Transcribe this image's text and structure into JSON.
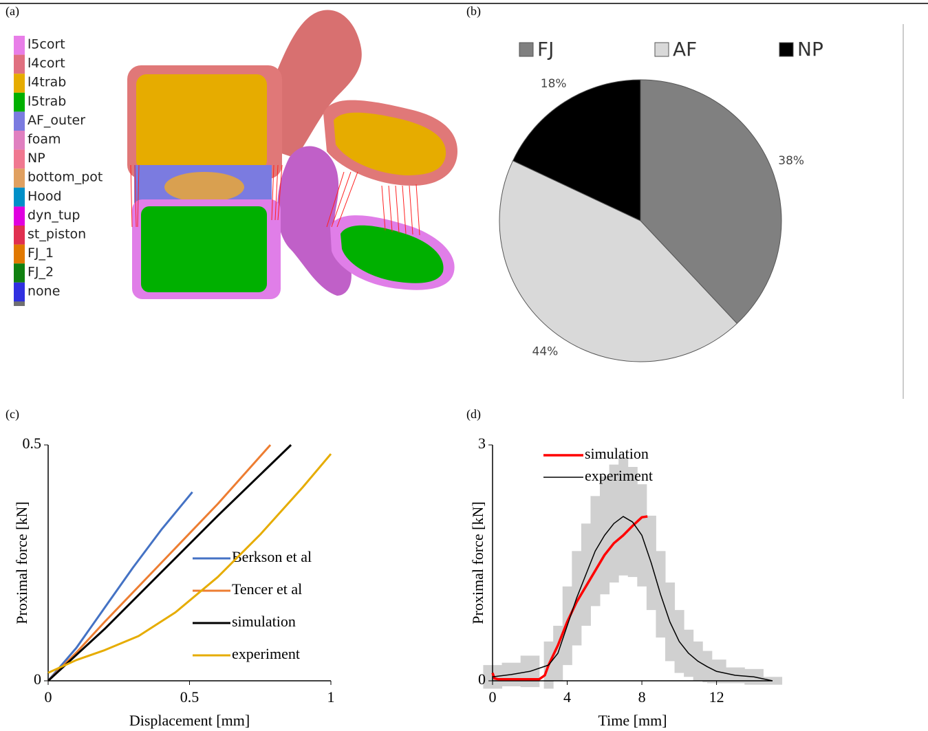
{
  "panel_a": {
    "label": "(a)",
    "legend": [
      {
        "name": "l5cort",
        "color": "#e87ee8"
      },
      {
        "name": "l4cort",
        "color": "#e07080"
      },
      {
        "name": "l4trab",
        "color": "#e6ac00"
      },
      {
        "name": "l5trab",
        "color": "#00b000"
      },
      {
        "name": "AF_outer",
        "color": "#7b7be0"
      },
      {
        "name": "foam",
        "color": "#e080c0"
      },
      {
        "name": "NP",
        "color": "#f07890"
      },
      {
        "name": "bottom_pot",
        "color": "#e0a060"
      },
      {
        "name": "Hood",
        "color": "#0090c8"
      },
      {
        "name": "dyn_tup",
        "color": "#e000e0"
      },
      {
        "name": "st_piston",
        "color": "#e03050"
      },
      {
        "name": "FJ_1",
        "color": "#e07800"
      },
      {
        "name": "FJ_2",
        "color": "#108010"
      },
      {
        "name": "none",
        "color": "#3030e0"
      }
    ]
  },
  "chart_data": [
    {
      "type": "pie",
      "label": "(b)",
      "categories": [
        "FJ",
        "AF",
        "NP"
      ],
      "values": [
        38,
        44,
        18
      ],
      "value_labels": [
        "38%",
        "44%",
        "18%"
      ],
      "colors": [
        "#808080",
        "#d9d9d9",
        "#000000"
      ],
      "legend": "top"
    },
    {
      "type": "line",
      "label": "(c)",
      "xlabel": "Displacement  [mm]",
      "ylabel": "Proximal force [kN]",
      "xlim": [
        0,
        1
      ],
      "ylim": [
        0,
        0.5
      ],
      "xticks": [
        0,
        0.5,
        1
      ],
      "yticks": [
        0,
        0.5
      ],
      "grid": false,
      "legend": "right",
      "series": [
        {
          "name": "Berkson et al",
          "color": "#4472c4",
          "width": 3,
          "x": [
            0,
            0.1,
            0.2,
            0.3,
            0.4,
            0.51
          ],
          "values": [
            0,
            0.07,
            0.155,
            0.24,
            0.32,
            0.4
          ]
        },
        {
          "name": "Tencer et al",
          "color": "#ed7d31",
          "width": 3,
          "x": [
            0,
            0.1,
            0.2,
            0.4,
            0.6,
            0.786
          ],
          "values": [
            0,
            0.06,
            0.125,
            0.25,
            0.375,
            0.5
          ]
        },
        {
          "name": "simulation",
          "color": "#000000",
          "width": 3,
          "x": [
            0,
            0.2,
            0.4,
            0.6,
            0.859
          ],
          "values": [
            0,
            0.11,
            0.23,
            0.35,
            0.5
          ]
        },
        {
          "name": "experiment",
          "color": "#e6ac00",
          "width": 3,
          "x": [
            0,
            0.1,
            0.2,
            0.32,
            0.45,
            0.6,
            0.75,
            0.9,
            1
          ],
          "values": [
            0.017,
            0.044,
            0.065,
            0.095,
            0.145,
            0.22,
            0.31,
            0.41,
            0.481
          ]
        }
      ]
    },
    {
      "type": "line",
      "label": "(d)",
      "xlabel": "Time [mm]",
      "ylabel": "Proximal force [kN]",
      "xlim": [
        0,
        15
      ],
      "ylim": [
        0,
        3
      ],
      "xticks": [
        0,
        4,
        8,
        12
      ],
      "yticks": [
        0,
        3
      ],
      "grid": false,
      "legend": "top",
      "series": [
        {
          "name": "simulation",
          "color": "#ff0000",
          "width": 3.5,
          "x": [
            0,
            0.1,
            0.3,
            2.5,
            2.8,
            3,
            3.5,
            4,
            4.5,
            5,
            5.5,
            6,
            6.5,
            7,
            7.5,
            8,
            8.3
          ],
          "values": [
            0.1,
            0.03,
            0.02,
            0.02,
            0.07,
            0.2,
            0.45,
            0.75,
            1.0,
            1.2,
            1.4,
            1.6,
            1.75,
            1.85,
            1.97,
            2.08,
            2.09
          ]
        },
        {
          "name": "experiment",
          "color": "#000000",
          "width": 1.5,
          "error_color": "#d0d0d0",
          "x": [
            0,
            1,
            2,
            3,
            3.5,
            4,
            4.5,
            5,
            5.5,
            6,
            6.5,
            7,
            7.5,
            8,
            8.5,
            9,
            9.5,
            10,
            10.5,
            11,
            11.5,
            12,
            13,
            14,
            15
          ],
          "values": [
            0.05,
            0.08,
            0.12,
            0.2,
            0.35,
            0.7,
            1.05,
            1.35,
            1.65,
            1.85,
            2.0,
            2.09,
            2.02,
            1.85,
            1.5,
            1.1,
            0.75,
            0.5,
            0.35,
            0.25,
            0.18,
            0.12,
            0.07,
            0.05,
            0.0
          ],
          "errors": [
            0.15,
            0.15,
            0.2,
            0.3,
            0.35,
            0.5,
            0.6,
            0.65,
            0.7,
            0.75,
            0.75,
            0.75,
            0.7,
            0.65,
            0.6,
            0.55,
            0.5,
            0.4,
            0.3,
            0.25,
            0.2,
            0.15,
            0.1,
            0.1,
            0.05
          ]
        }
      ]
    }
  ]
}
